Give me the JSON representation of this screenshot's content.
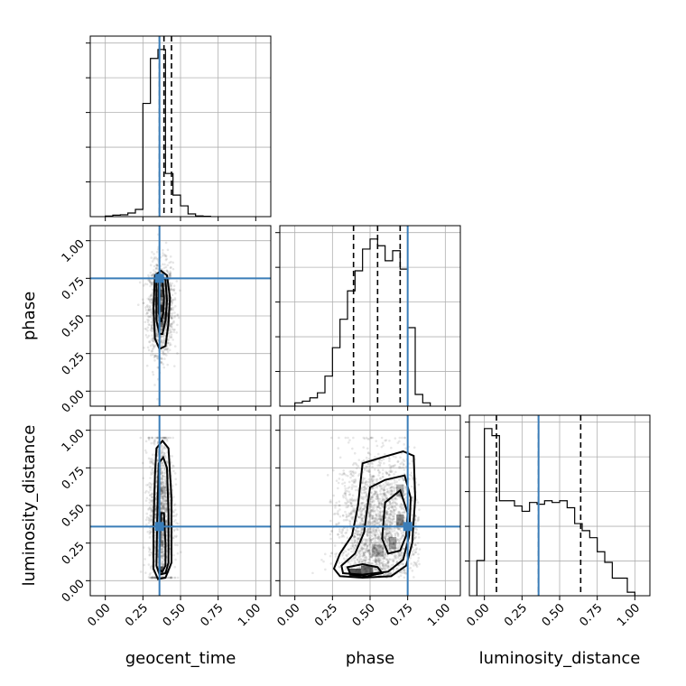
{
  "chart_data": {
    "type": "corner",
    "parameters": [
      "geocent_time",
      "phase",
      "luminosity_distance"
    ],
    "axis_labels": {
      "geocent_time": "geocent_time",
      "phase": "phase",
      "luminosity_distance": "luminosity_distance"
    },
    "limits": [
      -0.1,
      1.1
    ],
    "ticks": [
      0.0,
      0.25,
      0.5,
      0.75,
      1.0
    ],
    "tick_labels": [
      "0.00",
      "0.25",
      "0.50",
      "0.75",
      "1.00"
    ],
    "grid": true,
    "colors": {
      "truth": "#3a7db8",
      "hist": "#000000",
      "scatter": "#555555"
    },
    "truths": {
      "geocent_time": 0.36,
      "phase": 0.75,
      "luminosity_distance": 0.36
    },
    "quantiles": {
      "geocent_time": [
        0.36,
        0.39,
        0.44
      ],
      "phase": [
        0.39,
        0.55,
        0.7
      ],
      "luminosity_distance": [
        0.08,
        0.36,
        0.64
      ]
    },
    "histograms": {
      "geocent_time": {
        "bins": [
          0.0,
          0.05,
          0.1,
          0.15,
          0.2,
          0.25,
          0.3,
          0.35,
          0.4,
          0.45,
          0.5,
          0.55,
          0.6,
          0.65,
          0.7
        ],
        "counts": [
          0.003,
          0.008,
          0.01,
          0.02,
          0.04,
          0.63,
          0.88,
          0.93,
          0.24,
          0.12,
          0.06,
          0.015,
          0.004,
          0.002
        ]
      },
      "phase": {
        "bins": [
          0.0,
          0.05,
          0.1,
          0.15,
          0.2,
          0.25,
          0.3,
          0.35,
          0.4,
          0.45,
          0.5,
          0.55,
          0.6,
          0.65,
          0.7,
          0.75,
          0.8,
          0.85,
          0.9
        ],
        "counts": [
          0.02,
          0.03,
          0.05,
          0.08,
          0.18,
          0.35,
          0.52,
          0.69,
          0.81,
          0.94,
          1.0,
          0.96,
          0.87,
          0.93,
          0.82,
          0.47,
          0.07,
          0.02
        ]
      },
      "luminosity_distance": {
        "bins": [
          -0.05,
          0.0,
          0.05,
          0.1,
          0.15,
          0.2,
          0.25,
          0.3,
          0.35,
          0.4,
          0.45,
          0.5,
          0.55,
          0.6,
          0.65,
          0.7,
          0.75,
          0.8,
          0.85,
          0.9,
          0.95,
          1.0
        ],
        "counts": [
          0.2,
          0.95,
          0.91,
          0.54,
          0.54,
          0.51,
          0.48,
          0.53,
          0.52,
          0.54,
          0.53,
          0.54,
          0.5,
          0.41,
          0.37,
          0.33,
          0.25,
          0.19,
          0.1,
          0.1,
          0.02
        ]
      }
    },
    "scatter": {
      "phase_vs_geocent_time": {
        "x_mean": 0.37,
        "x_sd": 0.04,
        "y_mean": 0.55,
        "y_sd": 0.15,
        "n": 1400
      },
      "luminosity_distance_vs_geocent_time": {
        "x_mean": 0.37,
        "x_sd": 0.04,
        "y_mean": 0.45,
        "y_sd": 0.26,
        "n": 1400
      },
      "luminosity_distance_vs_phase": {
        "x_mean": 0.55,
        "x_sd": 0.13,
        "y_mean": 0.35,
        "y_sd": 0.24,
        "n": 2200
      }
    },
    "density_cells": {
      "phase_vs_geocent_time": [
        {
          "x": 0.37,
          "y": 0.55,
          "w": 0.03,
          "h": 0.05,
          "d": 0.9
        },
        {
          "x": 0.37,
          "y": 0.65,
          "w": 0.03,
          "h": 0.05,
          "d": 0.7
        },
        {
          "x": 0.37,
          "y": 0.45,
          "w": 0.03,
          "h": 0.05,
          "d": 0.6
        },
        {
          "x": 0.34,
          "y": 0.6,
          "w": 0.03,
          "h": 0.05,
          "d": 0.45
        },
        {
          "x": 0.4,
          "y": 0.5,
          "w": 0.03,
          "h": 0.05,
          "d": 0.4
        },
        {
          "x": 0.37,
          "y": 0.72,
          "w": 0.03,
          "h": 0.05,
          "d": 0.5
        }
      ],
      "luminosity_distance_vs_geocent_time": [
        {
          "x": 0.37,
          "y": 0.07,
          "w": 0.03,
          "h": 0.05,
          "d": 0.9
        },
        {
          "x": 0.37,
          "y": 0.4,
          "w": 0.03,
          "h": 0.05,
          "d": 0.5
        },
        {
          "x": 0.37,
          "y": 0.6,
          "w": 0.03,
          "h": 0.05,
          "d": 0.35
        },
        {
          "x": 0.37,
          "y": 0.25,
          "w": 0.03,
          "h": 0.05,
          "d": 0.35
        }
      ],
      "luminosity_distance_vs_phase": [
        {
          "x": 0.4,
          "y": 0.05,
          "w": 0.08,
          "h": 0.06,
          "d": 0.9
        },
        {
          "x": 0.48,
          "y": 0.07,
          "w": 0.08,
          "h": 0.06,
          "d": 0.75
        },
        {
          "x": 0.7,
          "y": 0.4,
          "w": 0.05,
          "h": 0.08,
          "d": 0.6
        },
        {
          "x": 0.7,
          "y": 0.6,
          "w": 0.05,
          "h": 0.08,
          "d": 0.4
        },
        {
          "x": 0.55,
          "y": 0.2,
          "w": 0.08,
          "h": 0.08,
          "d": 0.35
        },
        {
          "x": 0.65,
          "y": 0.25,
          "w": 0.05,
          "h": 0.08,
          "d": 0.45
        }
      ]
    },
    "contours": {
      "phase_vs_geocent_time": [
        [
          [
            0.33,
            0.77
          ],
          [
            0.37,
            0.8
          ],
          [
            0.41,
            0.77
          ],
          [
            0.43,
            0.62
          ],
          [
            0.42,
            0.45
          ],
          [
            0.4,
            0.3
          ],
          [
            0.36,
            0.28
          ],
          [
            0.33,
            0.35
          ],
          [
            0.32,
            0.55
          ],
          [
            0.33,
            0.77
          ]
        ],
        [
          [
            0.34,
            0.75
          ],
          [
            0.37,
            0.77
          ],
          [
            0.4,
            0.74
          ],
          [
            0.41,
            0.6
          ],
          [
            0.4,
            0.47
          ],
          [
            0.38,
            0.38
          ],
          [
            0.36,
            0.38
          ],
          [
            0.34,
            0.47
          ],
          [
            0.34,
            0.62
          ],
          [
            0.34,
            0.75
          ]
        ],
        [
          [
            0.355,
            0.72
          ],
          [
            0.38,
            0.73
          ],
          [
            0.39,
            0.62
          ],
          [
            0.385,
            0.52
          ],
          [
            0.37,
            0.46
          ],
          [
            0.355,
            0.52
          ],
          [
            0.355,
            0.72
          ]
        ]
      ],
      "luminosity_distance_vs_geocent_time": [
        [
          [
            0.34,
            0.88
          ],
          [
            0.38,
            0.93
          ],
          [
            0.42,
            0.88
          ],
          [
            0.44,
            0.55
          ],
          [
            0.44,
            0.12
          ],
          [
            0.4,
            0.02
          ],
          [
            0.35,
            0.01
          ],
          [
            0.32,
            0.08
          ],
          [
            0.32,
            0.35
          ],
          [
            0.33,
            0.7
          ],
          [
            0.34,
            0.88
          ]
        ],
        [
          [
            0.355,
            0.78
          ],
          [
            0.385,
            0.82
          ],
          [
            0.41,
            0.75
          ],
          [
            0.42,
            0.45
          ],
          [
            0.42,
            0.12
          ],
          [
            0.4,
            0.05
          ],
          [
            0.36,
            0.04
          ],
          [
            0.34,
            0.1
          ],
          [
            0.345,
            0.4
          ],
          [
            0.355,
            0.78
          ]
        ],
        [
          [
            0.37,
            0.45
          ],
          [
            0.39,
            0.45
          ],
          [
            0.4,
            0.25
          ],
          [
            0.4,
            0.1
          ],
          [
            0.38,
            0.06
          ],
          [
            0.36,
            0.07
          ],
          [
            0.36,
            0.18
          ],
          [
            0.37,
            0.45
          ]
        ]
      ],
      "luminosity_distance_vs_phase": [
        [
          [
            0.45,
            0.78
          ],
          [
            0.58,
            0.82
          ],
          [
            0.72,
            0.86
          ],
          [
            0.79,
            0.83
          ],
          [
            0.8,
            0.55
          ],
          [
            0.78,
            0.25
          ],
          [
            0.74,
            0.1
          ],
          [
            0.64,
            0.03
          ],
          [
            0.45,
            0.02
          ],
          [
            0.3,
            0.03
          ],
          [
            0.26,
            0.08
          ],
          [
            0.3,
            0.18
          ],
          [
            0.38,
            0.3
          ],
          [
            0.42,
            0.5
          ],
          [
            0.45,
            0.78
          ]
        ],
        [
          [
            0.5,
            0.62
          ],
          [
            0.6,
            0.67
          ],
          [
            0.73,
            0.7
          ],
          [
            0.77,
            0.55
          ],
          [
            0.76,
            0.3
          ],
          [
            0.72,
            0.14
          ],
          [
            0.62,
            0.06
          ],
          [
            0.45,
            0.04
          ],
          [
            0.32,
            0.05
          ],
          [
            0.31,
            0.1
          ],
          [
            0.4,
            0.18
          ],
          [
            0.46,
            0.32
          ],
          [
            0.5,
            0.62
          ]
        ],
        [
          [
            0.6,
            0.52
          ],
          [
            0.7,
            0.6
          ],
          [
            0.75,
            0.45
          ],
          [
            0.74,
            0.3
          ],
          [
            0.7,
            0.2
          ],
          [
            0.62,
            0.18
          ],
          [
            0.58,
            0.28
          ],
          [
            0.6,
            0.52
          ]
        ],
        [
          [
            0.35,
            0.09
          ],
          [
            0.45,
            0.11
          ],
          [
            0.55,
            0.09
          ],
          [
            0.58,
            0.05
          ],
          [
            0.48,
            0.03
          ],
          [
            0.37,
            0.04
          ],
          [
            0.35,
            0.09
          ]
        ]
      ]
    }
  }
}
